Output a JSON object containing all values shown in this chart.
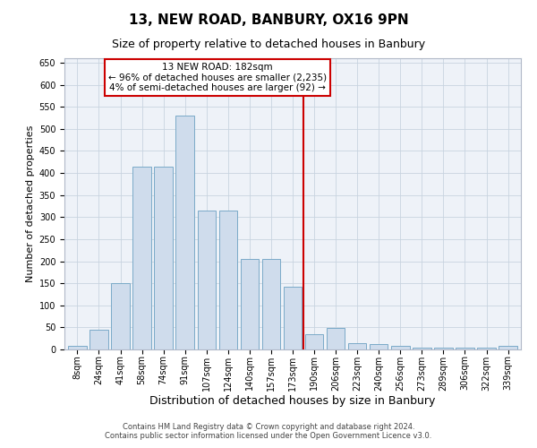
{
  "title1": "13, NEW ROAD, BANBURY, OX16 9PN",
  "title2": "Size of property relative to detached houses in Banbury",
  "xlabel": "Distribution of detached houses by size in Banbury",
  "ylabel": "Number of detached properties",
  "categories": [
    "8sqm",
    "24sqm",
    "41sqm",
    "58sqm",
    "74sqm",
    "91sqm",
    "107sqm",
    "124sqm",
    "140sqm",
    "157sqm",
    "173sqm",
    "190sqm",
    "206sqm",
    "223sqm",
    "240sqm",
    "256sqm",
    "273sqm",
    "289sqm",
    "306sqm",
    "322sqm",
    "339sqm"
  ],
  "values": [
    8,
    45,
    150,
    415,
    415,
    530,
    315,
    315,
    205,
    205,
    143,
    35,
    48,
    15,
    13,
    8,
    5,
    5,
    5,
    5,
    8
  ],
  "bar_color": "#cfdcec",
  "bar_edgecolor": "#7aaac8",
  "vline_x": 10.5,
  "vline_color": "#cc0000",
  "annotation_line1": "13 NEW ROAD: 182sqm",
  "annotation_line2": "← 96% of detached houses are smaller (2,235)",
  "annotation_line3": "4% of semi-detached houses are larger (92) →",
  "annotation_box_color": "#cc0000",
  "ylim": [
    0,
    660
  ],
  "yticks": [
    0,
    50,
    100,
    150,
    200,
    250,
    300,
    350,
    400,
    450,
    500,
    550,
    600,
    650
  ],
  "footer1": "Contains HM Land Registry data © Crown copyright and database right 2024.",
  "footer2": "Contains public sector information licensed under the Open Government Licence v3.0.",
  "bg_color": "#eef2f8",
  "grid_color": "#c8d4e0",
  "title1_fontsize": 11,
  "title2_fontsize": 9,
  "ylabel_fontsize": 8,
  "xlabel_fontsize": 9,
  "tick_fontsize": 7,
  "annotation_fontsize": 7.5,
  "footer_fontsize": 6
}
